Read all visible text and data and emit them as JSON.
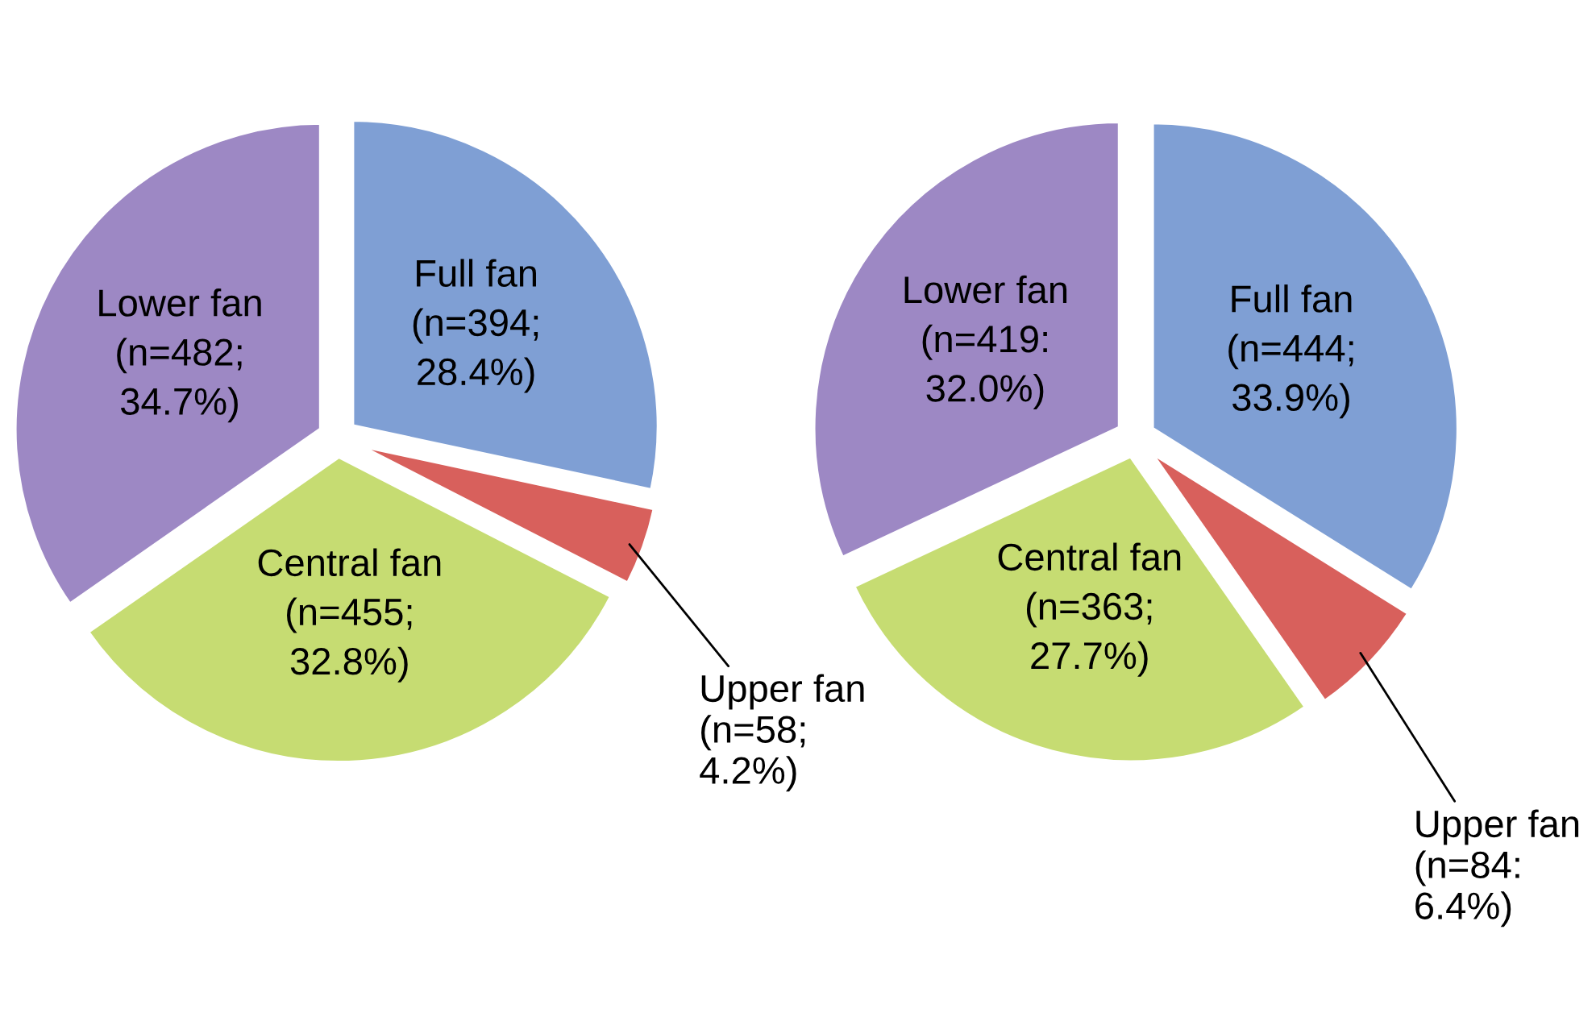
{
  "chart_data": [
    {
      "type": "pie",
      "categories": [
        "Full fan",
        "Upper fan",
        "Central fan",
        "Lower fan"
      ],
      "values": [
        394,
        58,
        455,
        482
      ],
      "colors": [
        "#7f9fd4",
        "#d8605c",
        "#c6dc72",
        "#9d88c4"
      ],
      "value_labels": [
        "(n=394;\n28.4%)",
        "(n=58;\n4.2%)",
        "(n=455;\n32.8%)",
        "(n=482;\n34.7%)"
      ]
    },
    {
      "type": "pie",
      "categories": [
        "Full fan",
        "Upper fan",
        "Central fan",
        "Lower fan"
      ],
      "values": [
        444,
        84,
        363,
        419
      ],
      "colors": [
        "#7f9fd4",
        "#d8605c",
        "#c6dc72",
        "#9d88c4"
      ],
      "value_labels": [
        "(n=444;\n33.9%)",
        "(n=84:\n6.4%)",
        "(n=363;\n27.7%)",
        "(n=419:\n32.0%)"
      ]
    }
  ]
}
